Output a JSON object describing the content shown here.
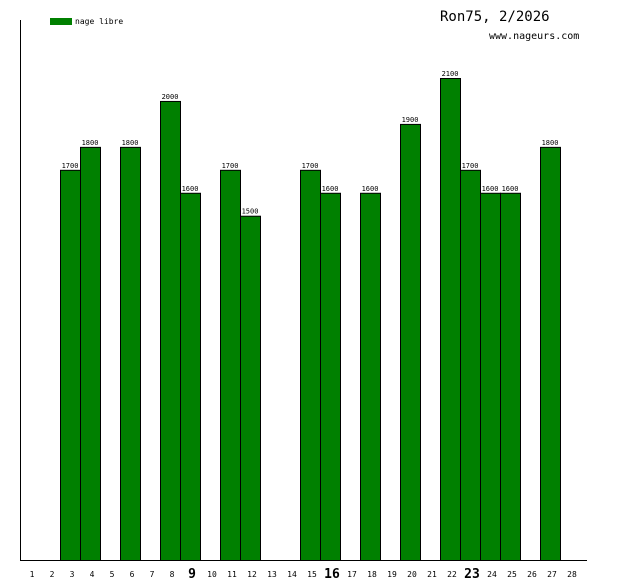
{
  "chart_data": {
    "type": "bar",
    "title": "Ron75, 2/2026",
    "subtitle": "www.nageurs.com",
    "legend": [
      {
        "label": "nage libre",
        "color": "#008000"
      }
    ],
    "legend_position": "top-left",
    "categories": [
      "1",
      "2",
      "3",
      "4",
      "5",
      "6",
      "7",
      "8",
      "9",
      "10",
      "11",
      "12",
      "13",
      "14",
      "15",
      "16",
      "17",
      "18",
      "19",
      "20",
      "21",
      "22",
      "23",
      "24",
      "25",
      "26",
      "27",
      "28"
    ],
    "emphasized_categories": [
      "9",
      "16",
      "23"
    ],
    "series": [
      {
        "name": "nage libre",
        "color": "#008000",
        "values": [
          null,
          null,
          1700,
          1800,
          null,
          1800,
          null,
          2000,
          1600,
          null,
          1700,
          1500,
          null,
          null,
          1700,
          1600,
          null,
          1600,
          null,
          1900,
          null,
          2100,
          1700,
          1600,
          1600,
          null,
          1800,
          null
        ]
      }
    ],
    "ylim": [
      0,
      2350
    ],
    "grid": false
  }
}
